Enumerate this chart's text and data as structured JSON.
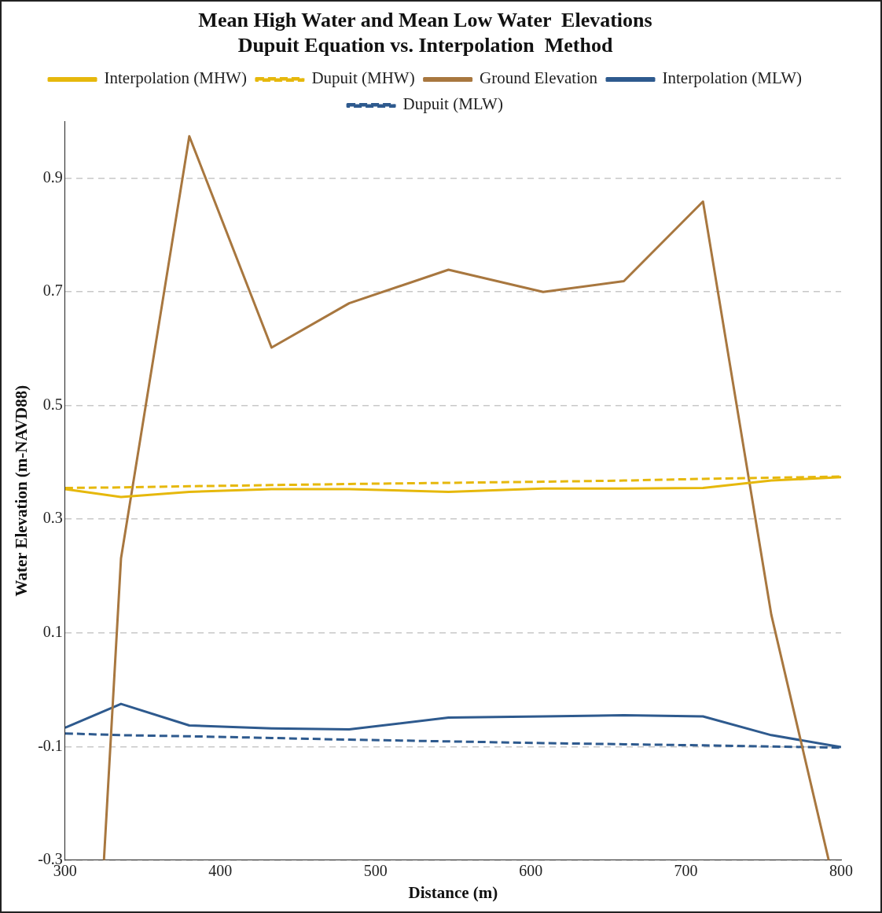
{
  "chart_data": {
    "type": "line",
    "title": [
      "Mean High Water and Mean Low Water  Elevations",
      "Dupuit Equation vs. Interpolation  Method"
    ],
    "xlabel": "Distance (m)",
    "ylabel": "Water Elevation (m-NAVD88)",
    "xlim": [
      300,
      800
    ],
    "xticks": [
      300,
      400,
      500,
      600,
      700,
      800
    ],
    "ylim": [
      -0.3,
      1.0
    ],
    "yticks": [
      -0.3,
      -0.1,
      0.1,
      0.3,
      0.5,
      0.7,
      0.9
    ],
    "grid": "y",
    "legend": "top",
    "marker": "none",
    "series": [
      {
        "name": "Interpolation (MHW)",
        "color": "#e6b80c",
        "line_style": "solid",
        "x": [
          300,
          336,
          380,
          433,
          483,
          547,
          608,
          660,
          711,
          755,
          800
        ],
        "values": [
          0.353,
          0.339,
          0.348,
          0.353,
          0.353,
          0.348,
          0.354,
          0.354,
          0.355,
          0.368,
          0.374
        ]
      },
      {
        "name": "Dupuit (MHW)",
        "color": "#e6b80c",
        "line_style": "dashed",
        "x": [
          300,
          336,
          380,
          433,
          483,
          547,
          608,
          660,
          711,
          755,
          800
        ],
        "values": [
          0.355,
          0.356,
          0.358,
          0.36,
          0.362,
          0.364,
          0.366,
          0.368,
          0.371,
          0.373,
          0.375
        ]
      },
      {
        "name": "Ground Elevation",
        "color": "#a8773f",
        "line_style": "solid",
        "x": [
          325,
          336,
          380,
          433,
          483,
          547,
          608,
          660,
          711,
          755,
          792
        ],
        "values": [
          -0.3,
          0.231,
          0.974,
          0.602,
          0.68,
          0.739,
          0.7,
          0.719,
          0.859,
          0.132,
          -0.3
        ]
      },
      {
        "name": "Interpolation (MLW)",
        "color": "#2e5a8e",
        "line_style": "solid",
        "x": [
          300,
          336,
          380,
          433,
          483,
          547,
          608,
          660,
          711,
          755,
          800
        ],
        "values": [
          -0.067,
          -0.025,
          -0.063,
          -0.068,
          -0.07,
          -0.049,
          -0.047,
          -0.045,
          -0.047,
          -0.08,
          -0.101
        ]
      },
      {
        "name": "Dupuit (MLW)",
        "color": "#2e5a8e",
        "line_style": "dashed",
        "x": [
          300,
          336,
          380,
          433,
          483,
          547,
          608,
          660,
          711,
          755,
          800
        ],
        "values": [
          -0.077,
          -0.08,
          -0.082,
          -0.085,
          -0.088,
          -0.091,
          -0.094,
          -0.096,
          -0.098,
          -0.1,
          -0.102
        ]
      }
    ]
  }
}
